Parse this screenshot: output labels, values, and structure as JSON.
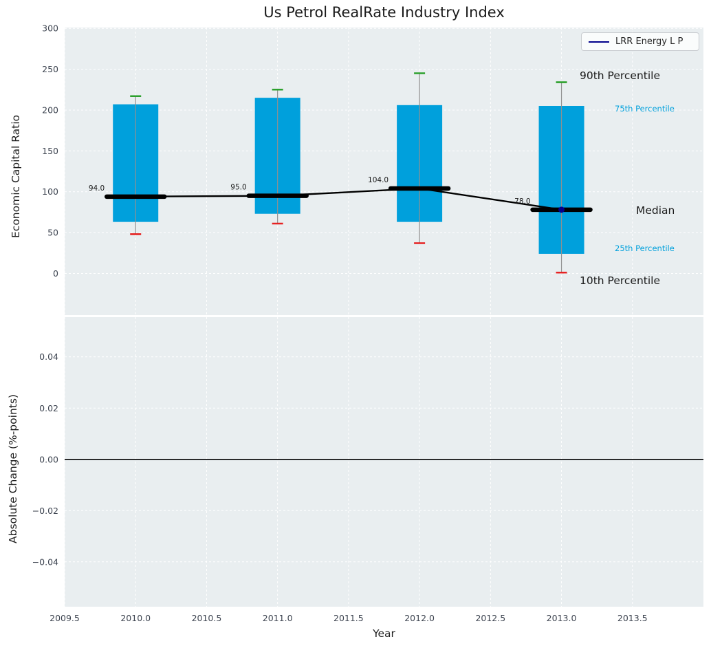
{
  "title": "Us Petrol RealRate Industry Index",
  "legend": {
    "label": "LRR Energy L P"
  },
  "annotations": [
    {
      "text": "90th Percentile",
      "size": "large"
    },
    {
      "text": "75th Percentile",
      "size": "small"
    },
    {
      "text": "Median",
      "size": "large"
    },
    {
      "text": "25th Percentile",
      "size": "small"
    },
    {
      "text": "10th Percentile",
      "size": "large"
    }
  ],
  "colors": {
    "box_fill": "#00a0dc",
    "p90_cap": "#2ca02c",
    "p10_cap": "#e62222",
    "median_line": "#000000",
    "whisker": "#909090",
    "series_marker": "#00008b",
    "legend_line": "#00008b",
    "panel_bg": "#e9eef0",
    "grid": "#ffffff",
    "tick_text": "#3d4450",
    "annotation_small": "#00a0dc",
    "zero_line": "#000000"
  },
  "chart_data": [
    {
      "type": "boxplot",
      "panel": "top",
      "title": "Us Petrol RealRate Industry Index",
      "ylabel": "Economic Capital Ratio",
      "xlim": [
        2009.5,
        2014.0
      ],
      "ylim": [
        -51,
        301
      ],
      "yticks": [
        0,
        50,
        100,
        150,
        200,
        250,
        300
      ],
      "ytick_labels": [
        "0",
        "50",
        "100",
        "150",
        "200",
        "250",
        "300"
      ],
      "xticks": [
        2009.5,
        2010.0,
        2010.5,
        2011.0,
        2011.5,
        2012.0,
        2012.5,
        2013.0,
        2013.5
      ],
      "grid": true,
      "legend_position": "upper right",
      "series": {
        "name": "LRR Energy L P",
        "marker_year": 2013,
        "marker_value": 78
      },
      "boxes": [
        {
          "year": 2010,
          "p10": 48,
          "p25": 63,
          "median": 94,
          "p75": 207,
          "p90": 217,
          "label": "94.0"
        },
        {
          "year": 2011,
          "p10": 61,
          "p25": 73,
          "median": 95,
          "p75": 215,
          "p90": 225,
          "label": "95.0"
        },
        {
          "year": 2012,
          "p10": 37,
          "p25": 63,
          "median": 104,
          "p75": 206,
          "p90": 245,
          "label": "104.0"
        },
        {
          "year": 2013,
          "p10": 1,
          "p25": 24,
          "median": 78,
          "p75": 205,
          "p90": 234,
          "label": "78.0"
        }
      ]
    },
    {
      "type": "line",
      "panel": "bottom",
      "ylabel": "Absolute Change (%-points)",
      "xlabel": "Year",
      "xlim": [
        2009.5,
        2014.0
      ],
      "ylim": [
        -0.0575,
        0.0555
      ],
      "yticks": [
        0.04,
        0.02,
        0.0,
        -0.02,
        -0.04
      ],
      "ytick_labels": [
        "0.04",
        "0.02",
        "0.00",
        "−0.02",
        "−0.04"
      ],
      "xticks": [
        2009.5,
        2010.0,
        2010.5,
        2011.0,
        2011.5,
        2012.0,
        2012.5,
        2013.0,
        2013.5
      ],
      "xtick_labels": [
        "2009.5",
        "2010.0",
        "2010.5",
        "2011.0",
        "2011.5",
        "2012.0",
        "2012.5",
        "2013.0",
        "2013.5"
      ],
      "grid": true,
      "zero_line": 0.0
    }
  ]
}
